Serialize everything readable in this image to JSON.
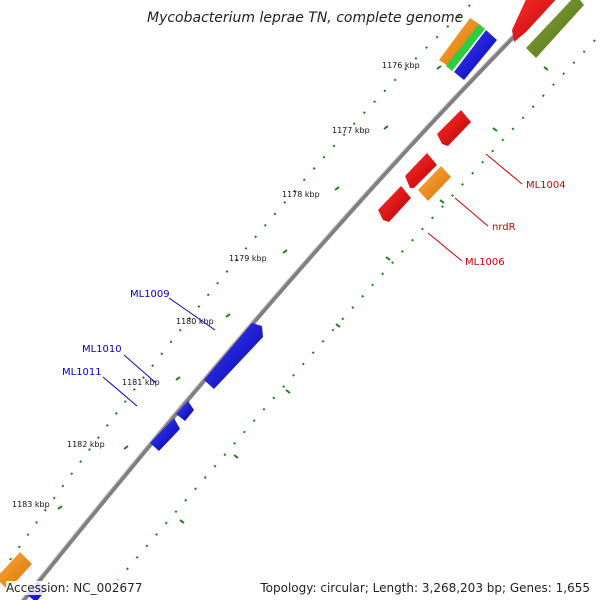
{
  "title": "Mycobacterium leprae TN, complete genome",
  "ticks": [
    "1176 kbp",
    "1177 kbp",
    "1178 kbp",
    "1179 kbp",
    "1180 kbp",
    "1181 kbp",
    "1182 kbp",
    "1183 kbp"
  ],
  "gene_labels": {
    "ml1004": "ML1004",
    "nrdr": "nrdR",
    "ml1006": "ML1006",
    "ml1009": "ML1009",
    "ml1010": "ML1010",
    "ml1011": "ML1011"
  },
  "footer": {
    "accession": "Accession: NC_002677",
    "topology": "Topology: circular; Length: 3,268,203 bp; Genes: 1,655"
  },
  "colors": {
    "backbone": "#808080",
    "forward_gene": "#e8141a",
    "reverse_gene": "#1010e0",
    "rna_gene": "#ff8c00",
    "olive_feature": "#6b8e23",
    "green_feature": "#2ecc40",
    "tick_marks": "#1a7f1a",
    "forward_label": "#cc0000",
    "reverse_label": "#0000cc"
  }
}
